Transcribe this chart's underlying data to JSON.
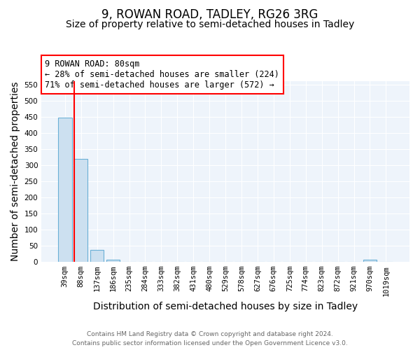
{
  "title": "9, ROWAN ROAD, TADLEY, RG26 3RG",
  "subtitle": "Size of property relative to semi-detached houses in Tadley",
  "xlabel": "Distribution of semi-detached houses by size in Tadley",
  "ylabel": "Number of semi-detached properties",
  "categories": [
    "39sqm",
    "88sqm",
    "137sqm",
    "186sqm",
    "235sqm",
    "284sqm",
    "333sqm",
    "382sqm",
    "431sqm",
    "480sqm",
    "529sqm",
    "578sqm",
    "627sqm",
    "676sqm",
    "725sqm",
    "774sqm",
    "823sqm",
    "872sqm",
    "921sqm",
    "970sqm",
    "1019sqm"
  ],
  "values": [
    447,
    320,
    37,
    7,
    0,
    0,
    0,
    0,
    0,
    0,
    0,
    0,
    0,
    0,
    0,
    0,
    0,
    0,
    0,
    7,
    0
  ],
  "bar_color": "#cce0f0",
  "bar_edge_color": "#6aafd6",
  "red_line_index": 1,
  "annotation_text": "9 ROWAN ROAD: 80sqm\n← 28% of semi-detached houses are smaller (224)\n71% of semi-detached houses are larger (572) →",
  "annotation_box_color": "white",
  "annotation_box_edge_color": "red",
  "ylim": [
    0,
    560
  ],
  "yticks": [
    0,
    50,
    100,
    150,
    200,
    250,
    300,
    350,
    400,
    450,
    500,
    550
  ],
  "footer_line1": "Contains HM Land Registry data © Crown copyright and database right 2024.",
  "footer_line2": "Contains public sector information licensed under the Open Government Licence v3.0.",
  "bg_color": "#eef4fb",
  "title_fontsize": 12,
  "subtitle_fontsize": 10,
  "tick_fontsize": 7.5,
  "label_fontsize": 10
}
